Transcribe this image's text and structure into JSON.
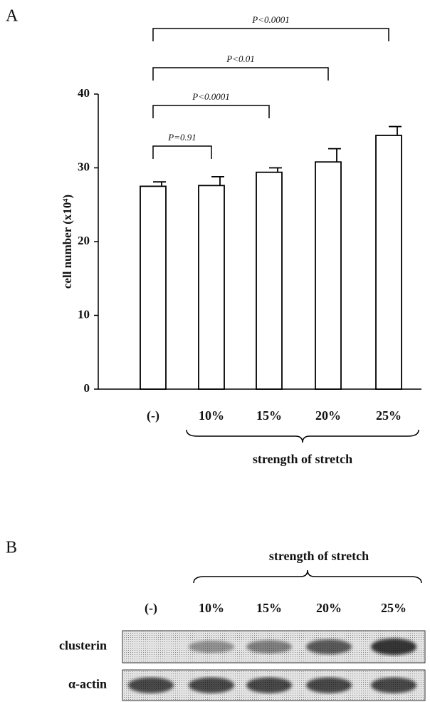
{
  "panel_a_label": "A",
  "chart_data": {
    "type": "bar",
    "categories": [
      "(-)",
      "10%",
      "15%",
      "20%",
      "25%"
    ],
    "values": [
      27.5,
      27.6,
      29.4,
      30.8,
      34.4
    ],
    "errors": [
      0.6,
      1.2,
      0.6,
      1.8,
      1.2
    ],
    "color": "#ffffff",
    "ylim": [
      0,
      40
    ],
    "yticks": [
      0,
      10,
      20,
      30,
      40
    ],
    "ylabel": "cell number (x10⁴)",
    "xlabel": "strength of stretch",
    "annotations": [
      "P=0.91",
      "P<0.0001",
      "P<0.01",
      "P<0.0001"
    ]
  },
  "panel_b": {
    "label": "B",
    "title": "strength of stretch",
    "lanes": [
      "(-)",
      "10%",
      "15%",
      "20%",
      "25%"
    ],
    "rows": [
      "clusterin",
      "α-actin"
    ]
  }
}
